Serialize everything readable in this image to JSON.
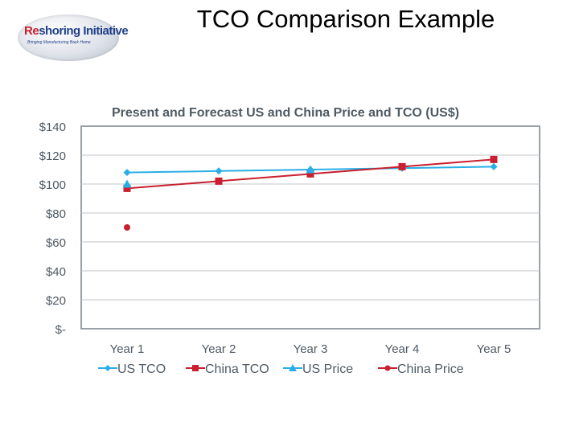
{
  "slide": {
    "title": "TCO Comparison Example",
    "logo": {
      "text_re": "Re",
      "text_rest": "shoring Initiative",
      "tagline": "Bringing Manufacturing Back Home"
    }
  },
  "colors": {
    "blue": "#29aee6",
    "red": "#c8202f",
    "title": "#4f5a64",
    "axis_text": "#4f5a64",
    "grid": "#c3c6c9",
    "plot_border": "#9aa0a6"
  },
  "chart_data": {
    "type": "line",
    "title": "Present and Forecast US and China Price and TCO (US$)",
    "categories": [
      "Year 1",
      "Year 2",
      "Year 3",
      "Year 4",
      "Year 5"
    ],
    "ylim": [
      0,
      140
    ],
    "yticks": [
      0,
      20,
      40,
      60,
      80,
      100,
      120,
      140
    ],
    "ytick_labels": [
      "$-",
      "$20",
      "$40",
      "$60",
      "$80",
      "$100",
      "$120",
      "$140"
    ],
    "grid": true,
    "legend": "bottom",
    "series": [
      {
        "name": "US TCO",
        "color": "#29aee6",
        "marker": "diamond",
        "values": [
          108,
          109,
          110,
          111,
          112
        ]
      },
      {
        "name": "China TCO",
        "color": "#c8202f",
        "marker": "square",
        "values": [
          97,
          102,
          107,
          112,
          117
        ]
      },
      {
        "name": "US Price",
        "color": "#29aee6",
        "marker": "triangle",
        "values": [
          100,
          null,
          110,
          null,
          null
        ]
      },
      {
        "name": "China Price",
        "color": "#c8202f",
        "marker": "circle",
        "values": [
          70,
          null,
          null,
          null,
          null
        ]
      }
    ]
  }
}
